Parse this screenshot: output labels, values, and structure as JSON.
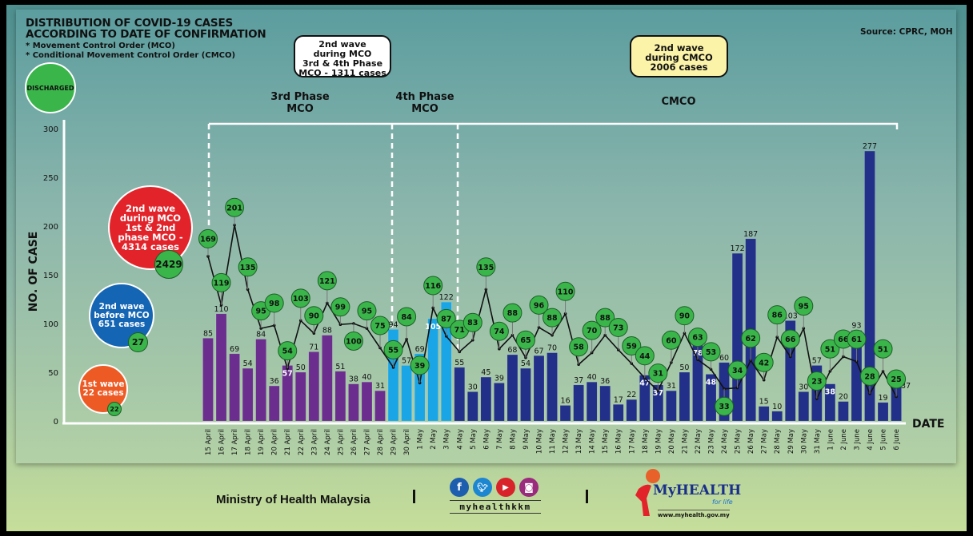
{
  "header": {
    "title_line1": "DISTRIBUTION OF COVID-19 CASES",
    "title_line2": "ACCORDING TO DATE OF CONFIRMATION",
    "note1": "* Movement Control Order (MCO)",
    "note2": "* Conditional Movement Control Order (CMCO)",
    "source": "Source: CPRC, MOH"
  },
  "callouts": {
    "mco_box": [
      "2nd wave",
      "during MCO",
      "3rd & 4th Phase",
      "MCO - 1311 cases"
    ],
    "cmco_box": [
      "2nd wave",
      "during CMCO",
      "2006 cases"
    ]
  },
  "phases": {
    "phase3": [
      "3rd Phase",
      "MCO"
    ],
    "phase4": [
      "4th Phase",
      "MCO"
    ],
    "cmco": "CMCO"
  },
  "legend": {
    "discharged": "DISCHARGED",
    "red": {
      "lines": [
        "2nd wave",
        "during MCO",
        "1st & 2nd",
        "phase MCO -",
        "4314 cases"
      ],
      "discharged": "2429",
      "color": "#e3232a"
    },
    "blue": {
      "lines": [
        "2nd wave",
        "before MCO",
        "651 cases"
      ],
      "discharged": "27",
      "color": "#1565b5"
    },
    "orange": {
      "lines": [
        "1st wave",
        "22 cases"
      ],
      "discharged": "22",
      "color": "#ee5a24"
    }
  },
  "chart_data": {
    "type": "bar",
    "xlabel": "DATE",
    "ylabel": "NO. OF CASE",
    "ylim": [
      0,
      300
    ],
    "yticks": [
      "0",
      "50",
      "100",
      "150",
      "200",
      "250",
      "300"
    ],
    "grid": false,
    "categories": [
      "15 April",
      "16 April",
      "17 April",
      "18 April",
      "19 April",
      "20 April",
      "21 April",
      "22 April",
      "23 April",
      "24 April",
      "25 April",
      "26 April",
      "27 April",
      "28 April",
      "29 April",
      "30 April",
      "1 May",
      "2 May",
      "3 May",
      "4 May",
      "5 May",
      "6 May",
      "7 May",
      "8 May",
      "9 May",
      "10 May",
      "11 May",
      "12 May",
      "13 May",
      "14 May",
      "15 May",
      "16 May",
      "17 May",
      "18 May",
      "19 May",
      "20 May",
      "21 May",
      "22 May",
      "23 May",
      "24 May",
      "25 May",
      "26 May",
      "27 May",
      "28 May",
      "29 May",
      "30 May",
      "31 May",
      "1 June",
      "2 June",
      "3 June",
      "4 June",
      "5 June",
      "6 June"
    ],
    "series": [
      {
        "type": "bar",
        "values": [
          85,
          110,
          69,
          54,
          84,
          36,
          57,
          50,
          71,
          88,
          51,
          38,
          40,
          31,
          94,
          57,
          69,
          105,
          122,
          55,
          30,
          45,
          39,
          68,
          54,
          67,
          70,
          16,
          37,
          40,
          36,
          17,
          22,
          47,
          37,
          31,
          50,
          78,
          48,
          60,
          172,
          187,
          15,
          10,
          103,
          30,
          57,
          38,
          20,
          93,
          277,
          19,
          37
        ]
      },
      {
        "type": "line",
        "name": "DISCHARGED",
        "values": [
          169,
          119,
          201,
          135,
          95,
          98,
          54,
          103,
          90,
          121,
          99,
          100,
          95,
          75,
          55,
          84,
          39,
          116,
          87,
          71,
          83,
          135,
          74,
          88,
          65,
          96,
          88,
          110,
          58,
          70,
          88,
          73,
          59,
          44,
          31,
          60,
          90,
          63,
          53,
          33,
          34,
          62,
          42,
          86,
          66,
          95,
          23,
          51,
          66,
          61,
          28,
          51,
          25
        ],
        "color": "#3ab54a"
      }
    ],
    "bar_colors": [
      {
        "from": "15 April",
        "to": "28 April",
        "color": "#6b2e8e"
      },
      {
        "from": "29 April",
        "to": "3 May",
        "color": "#1aa6e6"
      },
      {
        "from": "4 May",
        "to": "6 June",
        "color": "#233089"
      }
    ]
  },
  "footer": {
    "ministry": "Ministry of Health Malaysia",
    "handle": "myhealthkkm",
    "social_icons": [
      "facebook-icon",
      "twitter-icon",
      "youtube-icon",
      "instagram-icon"
    ],
    "logo_text": "MyHEALTH",
    "logo_tagline": "for life",
    "website": "www.myhealth.gov.my"
  }
}
